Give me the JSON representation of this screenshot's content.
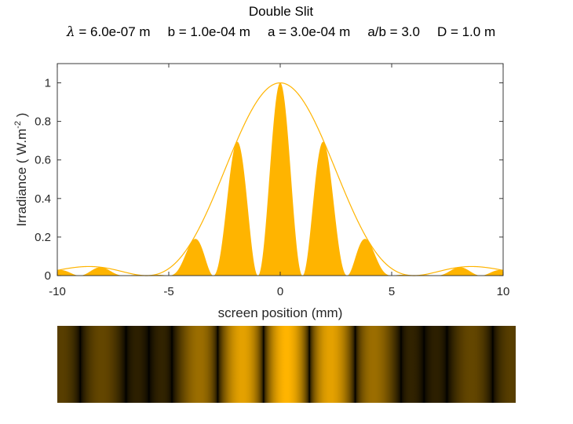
{
  "title": "Double Slit",
  "subtitle": {
    "lambda_symbol": "λ",
    "parts": [
      " = 6.0e-07 m",
      "b = 1.0e-04 m",
      "a = 3.0e-04 m",
      "a/b = 3.0",
      "D = 1.0 m"
    ]
  },
  "colors": {
    "accent": "#FFB400",
    "axis": "#262626"
  },
  "chart_data": {
    "type": "area",
    "xlabel": "screen position  (mm)",
    "ylabel": {
      "prefix": "Irradiance  ( W.m",
      "exponent": "-2",
      "suffix": "  )"
    },
    "xlim": [
      -10,
      10
    ],
    "ylim": [
      0,
      1.1
    ],
    "xticks": [
      -10,
      -5,
      0,
      5,
      10
    ],
    "yticks": [
      0,
      0.2,
      0.4,
      0.6,
      0.8,
      1
    ],
    "ytick_labels": [
      "0",
      "0.2",
      "0.4",
      "0.6",
      "0.8",
      "1"
    ],
    "grid": false,
    "parameters": {
      "wavelength_m": 6e-07,
      "slit_width_m": 0.0001,
      "slit_separation_m": 0.0003,
      "screen_distance_m": 1.0
    },
    "series": [
      {
        "kind": "filled_area",
        "description": "double slit irradiance",
        "peaks": [
          {
            "x": -8.2,
            "y": 0.04
          },
          {
            "x": -3.9,
            "y": 0.19
          },
          {
            "x": -2.0,
            "y": 0.69
          },
          {
            "x": 0,
            "y": 1.0
          },
          {
            "x": 2.0,
            "y": 0.69
          },
          {
            "x": 3.9,
            "y": 0.19
          },
          {
            "x": 8.2,
            "y": 0.04
          }
        ]
      },
      {
        "kind": "line",
        "description": "single slit envelope",
        "zeros": [
          -6.0,
          6.0
        ],
        "secondary_max": 0.047
      }
    ],
    "intensity_strip": {
      "colormap": "black-to-amber",
      "x_range": [
        -10,
        10
      ]
    }
  }
}
